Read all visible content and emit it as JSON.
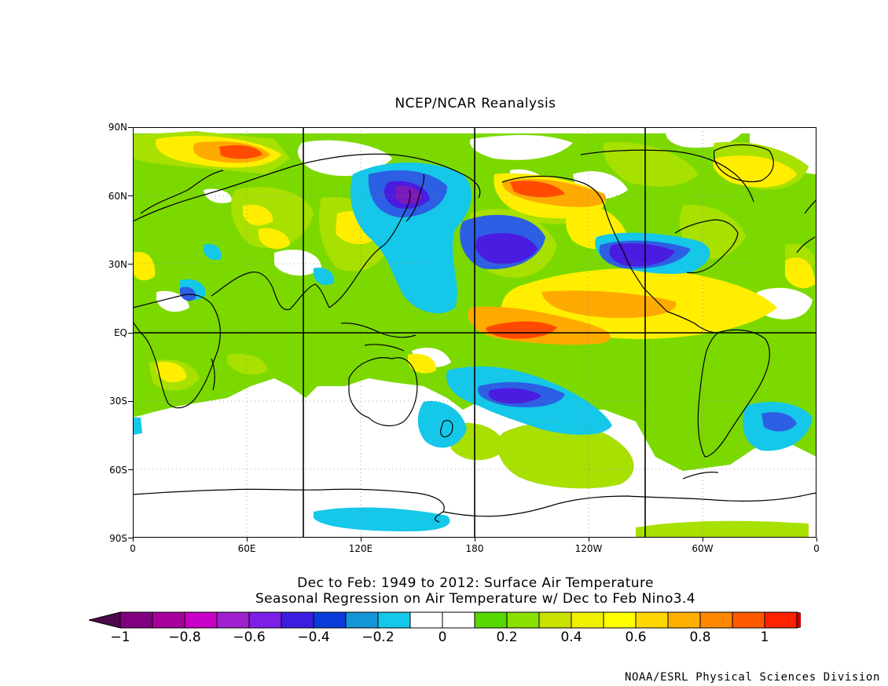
{
  "title": "NCEP/NCAR Reanalysis",
  "subtitle_line1": "Dec to Feb: 1949 to 2012: Surface Air Temperature",
  "subtitle_line2": "Seasonal Regression on Air Temperature  w/ Dec to Feb Nino3.4",
  "credit": "NOAA/ESRL Physical Sciences Division",
  "lat_labels": [
    "90N",
    "60N",
    "30N",
    "EQ",
    "30S",
    "60S",
    "90S"
  ],
  "lon_labels": [
    "0",
    "60E",
    "120E",
    "180",
    "120W",
    "60W",
    "0"
  ],
  "colorbar": {
    "labels": [
      "−1",
      "−0.8",
      "−0.6",
      "−0.4",
      "−0.2",
      "0",
      "0.2",
      "0.4",
      "0.6",
      "0.8",
      "1"
    ],
    "colors": [
      "#4b0a4b",
      "#80007f",
      "#a8009d",
      "#c800c8",
      "#a020d0",
      "#7d1fe6",
      "#3c1ee0",
      "#0a3cdc",
      "#1496d6",
      "#15c7e8",
      "#ffffff",
      "#ffffff",
      "#55d700",
      "#8ae000",
      "#c9e000",
      "#f0f000",
      "#ffff00",
      "#ffd700",
      "#ffaf00",
      "#ff8800",
      "#ff5a00",
      "#ff2200",
      "#cc0000"
    ]
  },
  "legend_colors": {
    "green": "#7cd900",
    "lime": "#a8e000",
    "yellow": "#ffee00",
    "orange": "#ffaa00",
    "red": "#ff4a00",
    "cyan": "#15c7e8",
    "blue": "#2c5fe3",
    "indigo": "#4a1be0",
    "purple": "#7a1ab8"
  }
}
